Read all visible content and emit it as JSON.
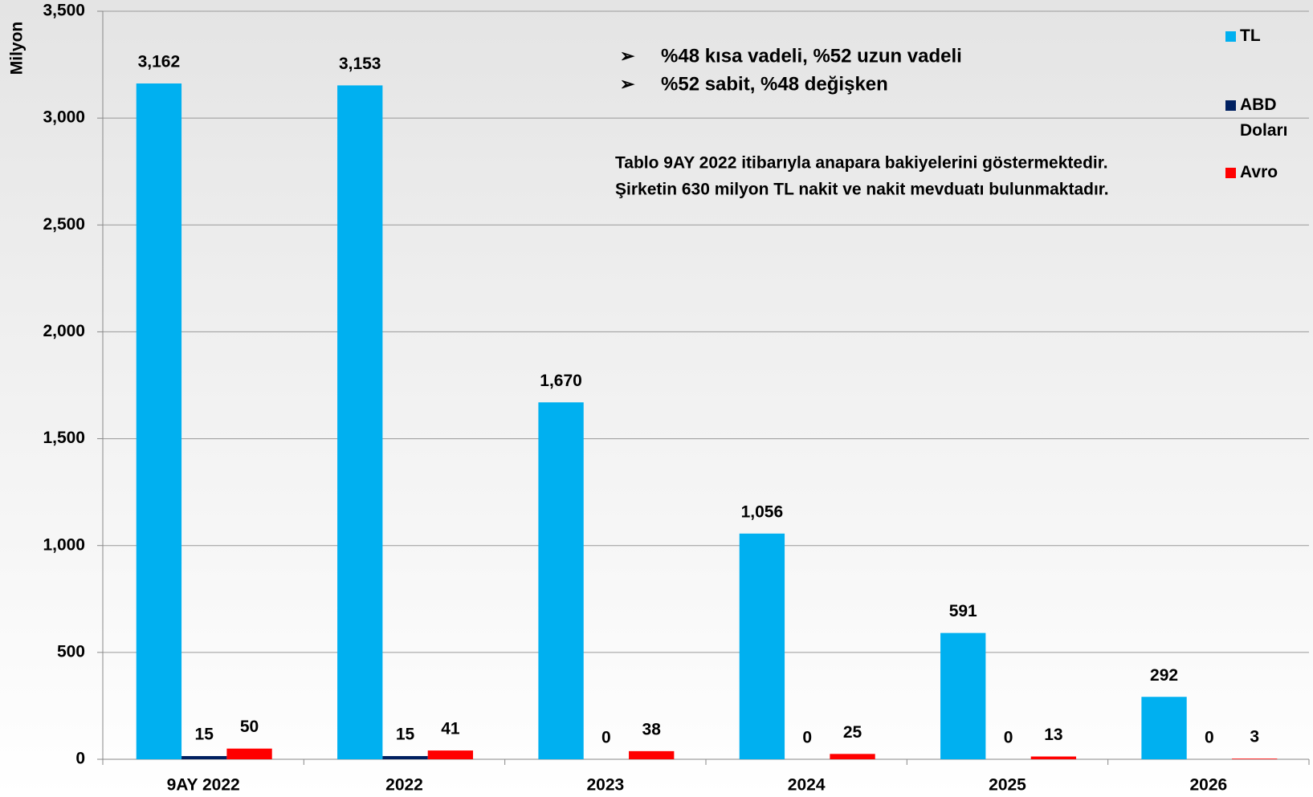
{
  "chart_data": {
    "type": "bar",
    "y_label": "Milyon",
    "categories": [
      "9AY 2022",
      "2022",
      "2023",
      "2024",
      "2025",
      "2026"
    ],
    "series": [
      {
        "name": "TL",
        "color": "#00b0f0",
        "values": [
          3162,
          3153,
          1670,
          1056,
          591,
          292
        ],
        "value_labels": [
          "3,162",
          "3,153",
          "1,670",
          "1,056",
          "591",
          "292"
        ]
      },
      {
        "name": "ABD Doları",
        "color": "#002060",
        "values": [
          15,
          15,
          0,
          0,
          0,
          0
        ],
        "value_labels": [
          "15",
          "15",
          "0",
          "0",
          "0",
          "0"
        ]
      },
      {
        "name": "Avro",
        "color": "#ff0000",
        "values": [
          50,
          41,
          38,
          25,
          13,
          3
        ],
        "value_labels": [
          "50",
          "41",
          "38",
          "25",
          "13",
          "3"
        ]
      }
    ],
    "ylim": [
      0,
      3500
    ],
    "yticks": [
      0,
      500,
      {
        "value": 1000,
        "label": "1,000"
      },
      {
        "value": 1500,
        "label": "1,500"
      },
      {
        "value": 2000,
        "label": "2,000"
      },
      {
        "value": 2500,
        "label": "2,500"
      },
      {
        "value": 3000,
        "label": "3,000"
      },
      {
        "value": 3500,
        "label": "3,500"
      }
    ],
    "grid": true,
    "legend": "right",
    "annotations": {
      "bullets": [
        "%48 kısa vadeli, %52 uzun vadeli",
        "%52 sabit, %48 değişken"
      ],
      "note": [
        "Tablo 9AY 2022 itibarıyla anapara bakiyelerini göstermektedir.",
        "Şirketin 630 milyon TL nakit ve nakit mevduatı bulunmaktadır."
      ]
    }
  }
}
